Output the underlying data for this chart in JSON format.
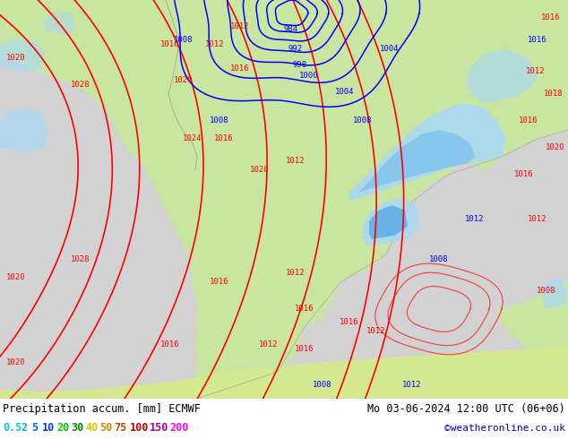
{
  "title_left": "Precipitation accum. [mm] ECMWF",
  "title_right": "Mo 03-06-2024 12:00 UTC (06+06)",
  "watermark": "©weatheronline.co.uk",
  "legend_values": [
    "0.5",
    "2",
    "5",
    "10",
    "20",
    "30",
    "40",
    "50",
    "75",
    "100",
    "150",
    "200"
  ],
  "legend_text_colors": [
    "#00cccc",
    "#00aaff",
    "#0066ff",
    "#0044cc",
    "#00cc00",
    "#008800",
    "#cccc00",
    "#cc8800",
    "#cc4400",
    "#cc0000",
    "#aa00aa",
    "#ff00ff"
  ],
  "watermark_color": "#0000cc",
  "font_size_title": 8.5,
  "font_size_legend": 8.5,
  "font_size_watermark": 8,
  "fig_width": 6.34,
  "fig_height": 4.9,
  "ocean_color": "#d2d2d2",
  "land_color": "#c8e6a0",
  "land_color2": "#b8d880",
  "precip_light": "#a8d8f8",
  "precip_mid": "#78c0f0",
  "precip_heavy": "#58a8e8",
  "bottom_bg": "#ffffff",
  "contour_red": "#ff0000",
  "contour_blue": "#0000ff"
}
